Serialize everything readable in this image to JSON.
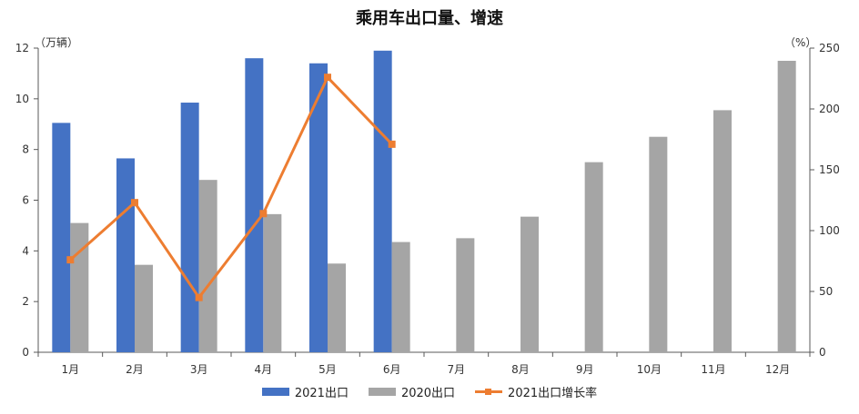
{
  "chart_data": {
    "type": "bar",
    "title": "乘用车出口量、增速",
    "y_left_unit": "（万辆）",
    "y_right_unit": "（%）",
    "categories": [
      "1月",
      "2月",
      "3月",
      "4月",
      "5月",
      "6月",
      "7月",
      "8月",
      "9月",
      "10月",
      "11月",
      "12月"
    ],
    "ylim_left": [
      0,
      12
    ],
    "yticks_left": [
      "0",
      "2",
      "4",
      "6",
      "8",
      "10",
      "12"
    ],
    "ylim_right": [
      0,
      250
    ],
    "yticks_right": [
      "0",
      "50",
      "100",
      "150",
      "200",
      "250"
    ],
    "series": [
      {
        "name": "2021出口",
        "type": "bar",
        "axis": "left",
        "color": "#4472C4",
        "values": [
          9.05,
          7.65,
          9.85,
          11.6,
          11.4,
          11.9,
          null,
          null,
          null,
          null,
          null,
          null
        ]
      },
      {
        "name": "2020出口",
        "type": "bar",
        "axis": "left",
        "color": "#A5A5A5",
        "values": [
          5.1,
          3.45,
          6.8,
          5.45,
          3.5,
          4.35,
          4.5,
          5.35,
          7.5,
          8.5,
          9.55,
          11.5
        ]
      },
      {
        "name": "2021出口增长率",
        "type": "line",
        "axis": "right",
        "color": "#ED7D31",
        "values": [
          76,
          123,
          45,
          114,
          226,
          171,
          null,
          null,
          null,
          null,
          null,
          null
        ]
      }
    ],
    "grid": false,
    "legend": "bottom"
  }
}
